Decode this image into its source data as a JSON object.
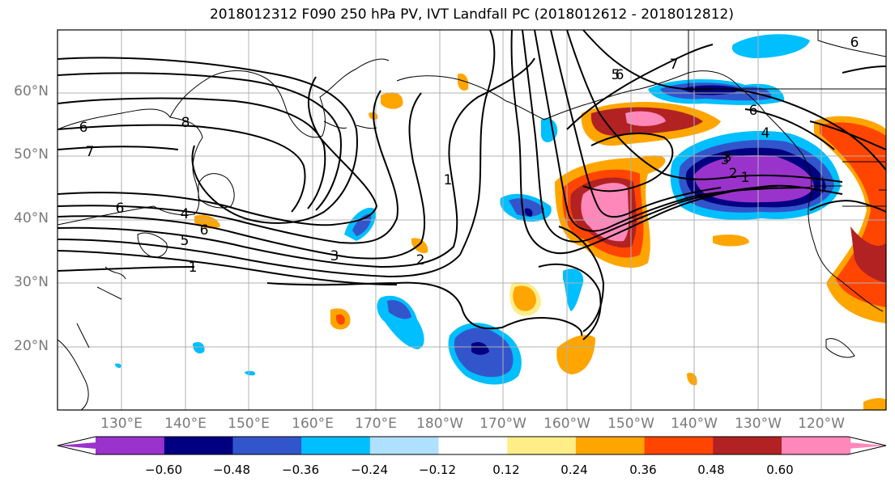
{
  "title": "2018012312 F090 250 hPa PV, IVT Landfall PC (2018012612 - 2018012812)",
  "lat_labels": [
    "60°N",
    "50°N",
    "40°N",
    "30°N",
    "20°N"
  ],
  "lon_labels": [
    "130°E",
    "140°E",
    "150°E",
    "160°E",
    "170°E",
    "180°W",
    "170°W",
    "160°W",
    "150°W",
    "140°W",
    "130°W",
    "120°W"
  ],
  "colorbar": {
    "ticks": [
      "−0.60",
      "−0.48",
      "−0.36",
      "−0.24",
      "−0.12",
      "0.12",
      "0.24",
      "0.36",
      "0.48",
      "0.60"
    ],
    "colors": [
      "#9933cc",
      "#000080",
      "#3355cc",
      "#00bfff",
      "#b0e0ff",
      "#ffffff",
      "#ffee88",
      "#ffa500",
      "#ff4500",
      "#b22222",
      "#ff88bb"
    ]
  },
  "contour_labels": [
    "6",
    "7",
    "8",
    "7",
    "6",
    "6",
    "6",
    "5",
    "4",
    "3",
    "2",
    "1",
    "1",
    "3",
    "2",
    "1",
    "6",
    "4",
    "3",
    "6",
    "5"
  ],
  "map_extent": {
    "lon": [
      "120°E",
      "110°W"
    ],
    "lat": [
      "10°N",
      "70°N"
    ]
  }
}
